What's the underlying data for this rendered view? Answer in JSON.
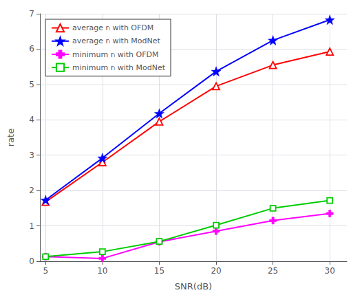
{
  "chart_data": {
    "type": "line",
    "xlabel": "SNR(dB)",
    "ylabel": "rate",
    "x": [
      5,
      10,
      15,
      20,
      25,
      30
    ],
    "series": [
      {
        "name": "average rᵢ with OFDM",
        "color": "#ff0000",
        "marker": "triangle-open",
        "values": [
          1.68,
          2.8,
          3.95,
          4.95,
          5.55,
          5.93
        ]
      },
      {
        "name": "average rᵢ with ModNet",
        "color": "#0000ff",
        "marker": "star",
        "values": [
          1.73,
          2.92,
          4.18,
          5.37,
          6.25,
          6.83
        ]
      },
      {
        "name": "minimum rᵢ with OFDM",
        "color": "#ff00ff",
        "marker": "plus",
        "values": [
          0.13,
          0.08,
          0.55,
          0.85,
          1.15,
          1.35
        ]
      },
      {
        "name": "minimum rᵢ with ModNet",
        "color": "#00cc00",
        "marker": "square-open",
        "values": [
          0.13,
          0.27,
          0.56,
          1.02,
          1.5,
          1.72
        ]
      }
    ],
    "xlim": [
      4.5,
      31.5
    ],
    "xticks": [
      5,
      10,
      15,
      20,
      25,
      30
    ],
    "ylim": [
      0,
      7
    ],
    "yticks": [
      0,
      1,
      2,
      3,
      4,
      5,
      6,
      7
    ],
    "grid": true,
    "legend": "upper left"
  }
}
